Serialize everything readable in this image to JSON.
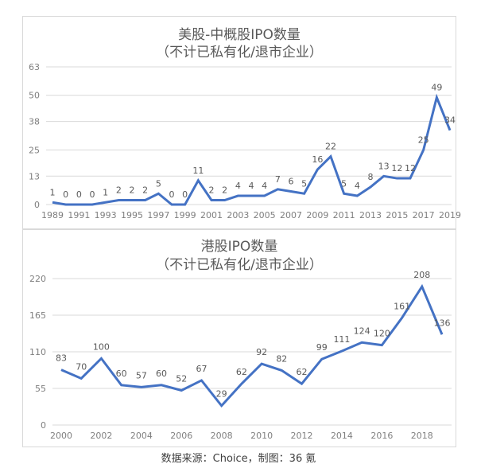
{
  "chart_data": [
    {
      "type": "line",
      "title": "美股-中概股IPO数量",
      "subtitle": "（不计已私有化/退市企业）",
      "xlabel": "",
      "ylabel": "",
      "yticks": [
        0,
        13,
        25,
        38,
        50,
        63
      ],
      "ylim": [
        0,
        63
      ],
      "xtick_labels": [
        "1989",
        "1991",
        "1993",
        "1995",
        "1997",
        "1999",
        "2001",
        "2003",
        "2005",
        "2007",
        "2009",
        "2011",
        "2013",
        "2015",
        "2017",
        "2019"
      ],
      "x": [
        1989,
        1990,
        1991,
        1992,
        1993,
        1994,
        1995,
        1996,
        1997,
        1998,
        1999,
        2000,
        2001,
        2002,
        2003,
        2004,
        2005,
        2006,
        2007,
        2008,
        2009,
        2010,
        2011,
        2012,
        2013,
        2014,
        2015,
        2016,
        2017,
        2018,
        2019
      ],
      "values": [
        1,
        0,
        0,
        0,
        1,
        2,
        2,
        2,
        5,
        0,
        0,
        11,
        2,
        2,
        4,
        4,
        4,
        7,
        6,
        5,
        16,
        22,
        5,
        4,
        8,
        13,
        12,
        12,
        25,
        49,
        34
      ],
      "grid": true,
      "legend": null,
      "color": "#4472c4"
    },
    {
      "type": "line",
      "title": "港股IPO数量",
      "subtitle": "（不计已私有化/退市企业）",
      "xlabel": "",
      "ylabel": "",
      "yticks": [
        0,
        55,
        110,
        165,
        220
      ],
      "ylim": [
        0,
        220
      ],
      "xtick_labels": [
        "2000",
        "2002",
        "2004",
        "2006",
        "2008",
        "2010",
        "2012",
        "2014",
        "2016",
        "2018"
      ],
      "x": [
        2000,
        2001,
        2002,
        2003,
        2004,
        2005,
        2006,
        2007,
        2008,
        2009,
        2010,
        2011,
        2012,
        2013,
        2014,
        2015,
        2016,
        2017,
        2018,
        2019
      ],
      "values": [
        83,
        70,
        100,
        60,
        57,
        60,
        52,
        67,
        29,
        62,
        92,
        82,
        62,
        99,
        111,
        124,
        120,
        161,
        208,
        136
      ],
      "grid": true,
      "legend": null,
      "color": "#4472c4"
    }
  ],
  "charts": {
    "top": {
      "title": "美股-中概股IPO数量",
      "subtitle": "（不计已私有化/退市企业）"
    },
    "bottom": {
      "title": "港股IPO数量",
      "subtitle": "（不计已私有化/退市企业）"
    }
  },
  "footer": {
    "source": "数据来源：Choice，制图：36 氪"
  }
}
